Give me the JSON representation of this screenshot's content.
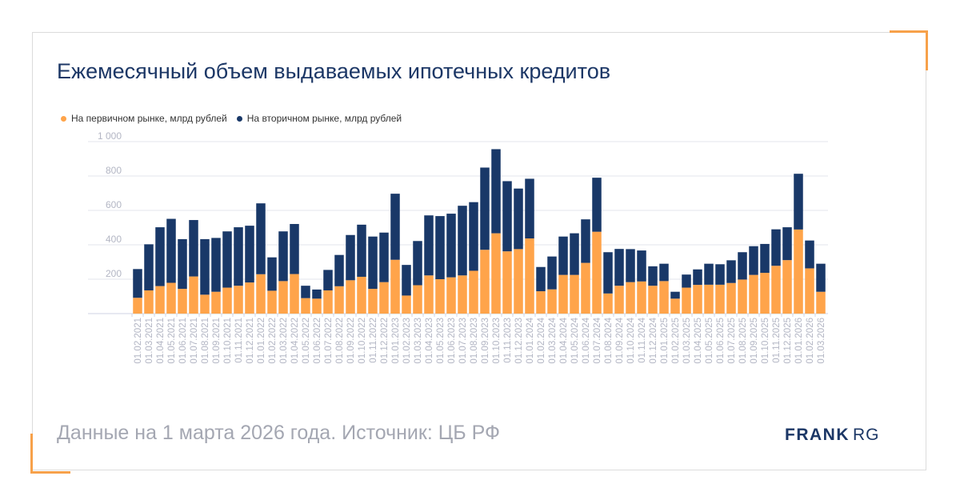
{
  "title": "Ежемесячный объем выдаваемых ипотечных кредитов",
  "footer": "Данные на 1 марта 2026 года. Источник: ЦБ РФ",
  "logo": {
    "part1": "FRANK",
    "part2": "RG"
  },
  "colors": {
    "primary": "#ffa44a",
    "secondary": "#193868",
    "accent": "#f7a14a"
  },
  "chart_data": {
    "type": "bar",
    "stacked": true,
    "title": "Ежемесячный объем выдаваемых ипотечных кредитов",
    "xlabel": "",
    "ylabel": "",
    "ylim": [
      0,
      1000
    ],
    "yticks": [
      0,
      200,
      400,
      600,
      800,
      1000
    ],
    "ytick_labels": [
      "",
      "200",
      "400",
      "600",
      "800",
      "1 000"
    ],
    "grid": true,
    "legend_position": "top-left",
    "categories": [
      "01.02.2021",
      "01.03.2021",
      "01.04.2021",
      "01.05.2021",
      "01.06.2021",
      "01.07.2021",
      "01.08.2021",
      "01.09.2021",
      "01.10.2021",
      "01.11.2021",
      "01.12.2021",
      "01.01.2022",
      "01.02.2022",
      "01.03.2022",
      "01.04.2022",
      "01.05.2022",
      "01.06.2022",
      "01.07.2022",
      "01.08.2022",
      "01.09.2022",
      "01.10.2022",
      "01.11.2022",
      "01.12.2022",
      "01.01.2023",
      "01.02.2023",
      "01.03.2023",
      "01.04.2023",
      "01.05.2023",
      "01.06.2023",
      "01.07.2023",
      "01.08.2023",
      "01.09.2023",
      "01.10.2023",
      "01.11.2023",
      "01.12.2023",
      "01.01.2024",
      "01.02.2024",
      "01.03.2024",
      "01.04.2024",
      "01.05.2024",
      "01.06.2024",
      "01.07.2024",
      "01.08.2024",
      "01.09.2024",
      "01.10.2024",
      "01.11.2024",
      "01.12.2024",
      "01.01.2025",
      "01.02.2025",
      "01.03.2025",
      "01.04.2025",
      "01.05.2025",
      "01.06.2025",
      "01.07.2025",
      "01.08.2025",
      "01.09.2025",
      "01.10.2025",
      "01.11.2025",
      "01.12.2025",
      "01.01.2026",
      "01.02.2026",
      "01.03.2026"
    ],
    "series": [
      {
        "name": "На первичном рынке, млрд рублей",
        "color": "#ffa44a",
        "values": [
          92,
          135,
          160,
          179,
          144,
          216,
          110,
          127,
          151,
          162,
          181,
          229,
          133,
          189,
          230,
          90,
          87,
          135,
          159,
          194,
          214,
          144,
          183,
          313,
          105,
          165,
          222,
          200,
          211,
          222,
          249,
          371,
          467,
          362,
          375,
          437,
          130,
          141,
          225,
          225,
          295,
          476,
          117,
          162,
          183,
          187,
          162,
          189,
          87,
          151,
          167,
          168,
          168,
          178,
          198,
          225,
          237,
          278,
          311,
          489,
          263,
          127
        ]
      },
      {
        "name": "На вторичном рынке, млрд рублей",
        "color": "#193868",
        "values": [
          167,
          268,
          342,
          372,
          289,
          328,
          323,
          313,
          327,
          340,
          330,
          412,
          194,
          289,
          291,
          72,
          53,
          119,
          182,
          263,
          303,
          304,
          288,
          384,
          178,
          257,
          349,
          367,
          370,
          405,
          399,
          478,
          489,
          408,
          352,
          347,
          141,
          191,
          223,
          242,
          253,
          314,
          240,
          214,
          192,
          180,
          113,
          101,
          40,
          76,
          90,
          122,
          119,
          132,
          159,
          167,
          168,
          212,
          191,
          324,
          162,
          163
        ]
      }
    ]
  }
}
